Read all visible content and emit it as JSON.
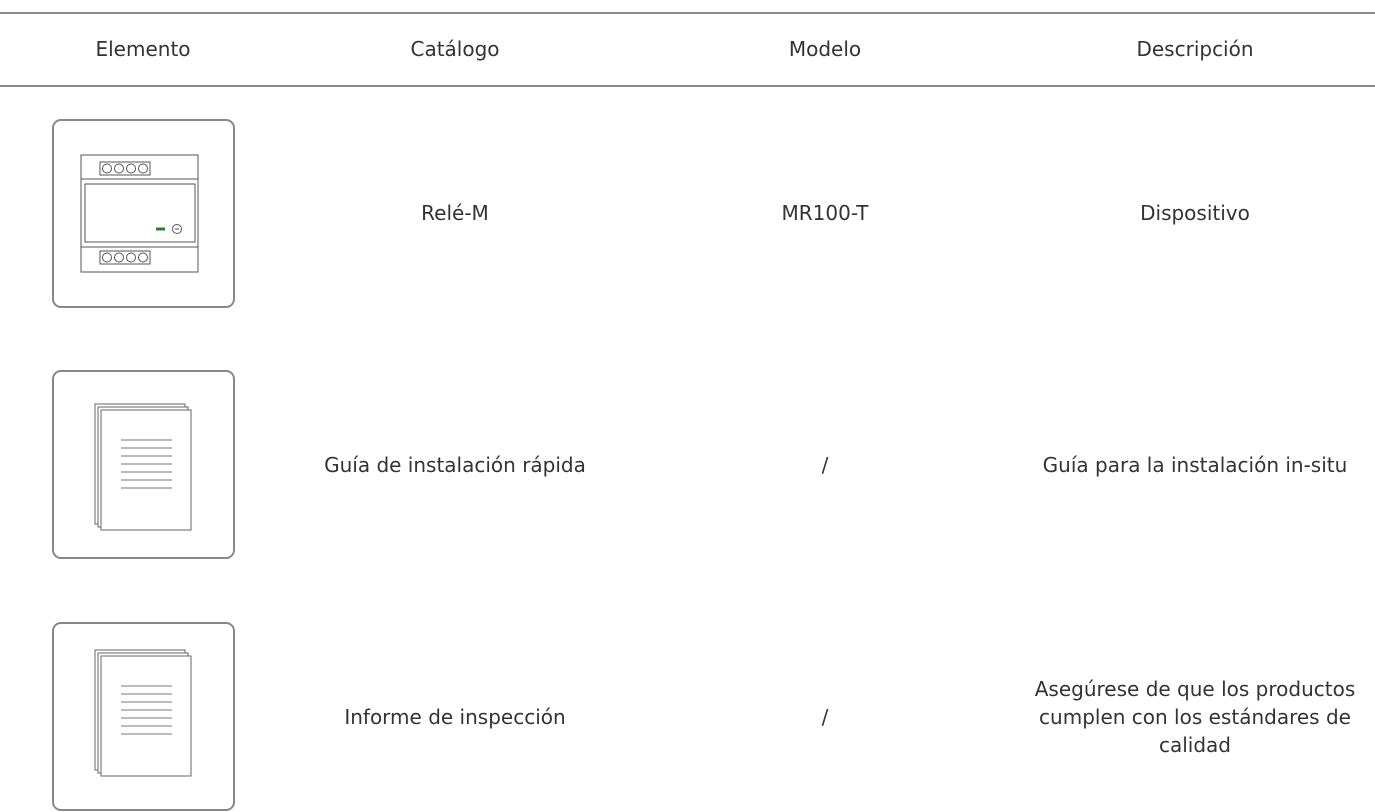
{
  "table": {
    "header": [
      "Elemento",
      "Catálogo",
      "Modelo",
      "Descripción"
    ],
    "rows": [
      {
        "catalog": "Relé-M",
        "model": "MR100-T",
        "description": "Dispositivo"
      },
      {
        "catalog": "Guía de instalación rápida",
        "model": "/",
        "description": "Guía para la instalación in-situ"
      },
      {
        "catalog": "Informe de inspección",
        "model": "/",
        "description": "Asegúrese de que los productos cumplen con los estándares de calidad"
      }
    ]
  }
}
